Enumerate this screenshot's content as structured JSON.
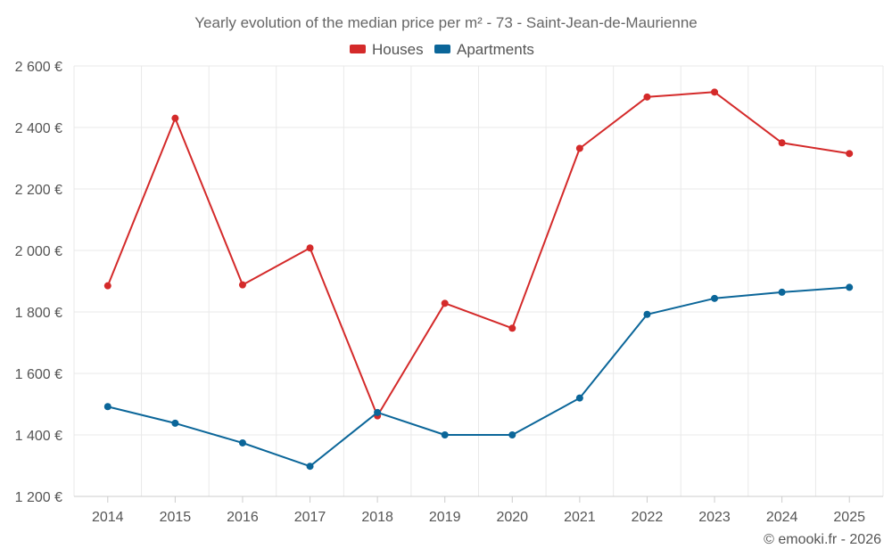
{
  "chart_data": {
    "type": "line",
    "title": "Yearly evolution of the median price per m² - 73 - Saint-Jean-de-Maurienne",
    "categories": [
      "2014",
      "2015",
      "2016",
      "2017",
      "2018",
      "2019",
      "2020",
      "2021",
      "2022",
      "2023",
      "2024",
      "2025"
    ],
    "series": [
      {
        "name": "Houses",
        "color": "#d42a2a",
        "values": [
          1885,
          2430,
          1888,
          2008,
          1462,
          1828,
          1747,
          2332,
          2499,
          2515,
          2350,
          2315
        ]
      },
      {
        "name": "Apartments",
        "color": "#0b6699",
        "values": [
          1492,
          1438,
          1374,
          1298,
          1473,
          1400,
          1400,
          1520,
          1792,
          1844,
          1864,
          1880
        ]
      }
    ],
    "ylim": [
      1200,
      2600
    ],
    "yticks": [
      1200,
      1400,
      1600,
      1800,
      2000,
      2200,
      2400,
      2600
    ],
    "ytick_labels": [
      "1 200 €",
      "1 400 €",
      "1 600 €",
      "1 800 €",
      "2 000 €",
      "2 200 €",
      "2 400 €",
      "2 600 €"
    ],
    "xlabel": "",
    "ylabel": "",
    "grid": true,
    "legend_position": "top-center",
    "credit": "© emooki.fr - 2026"
  }
}
